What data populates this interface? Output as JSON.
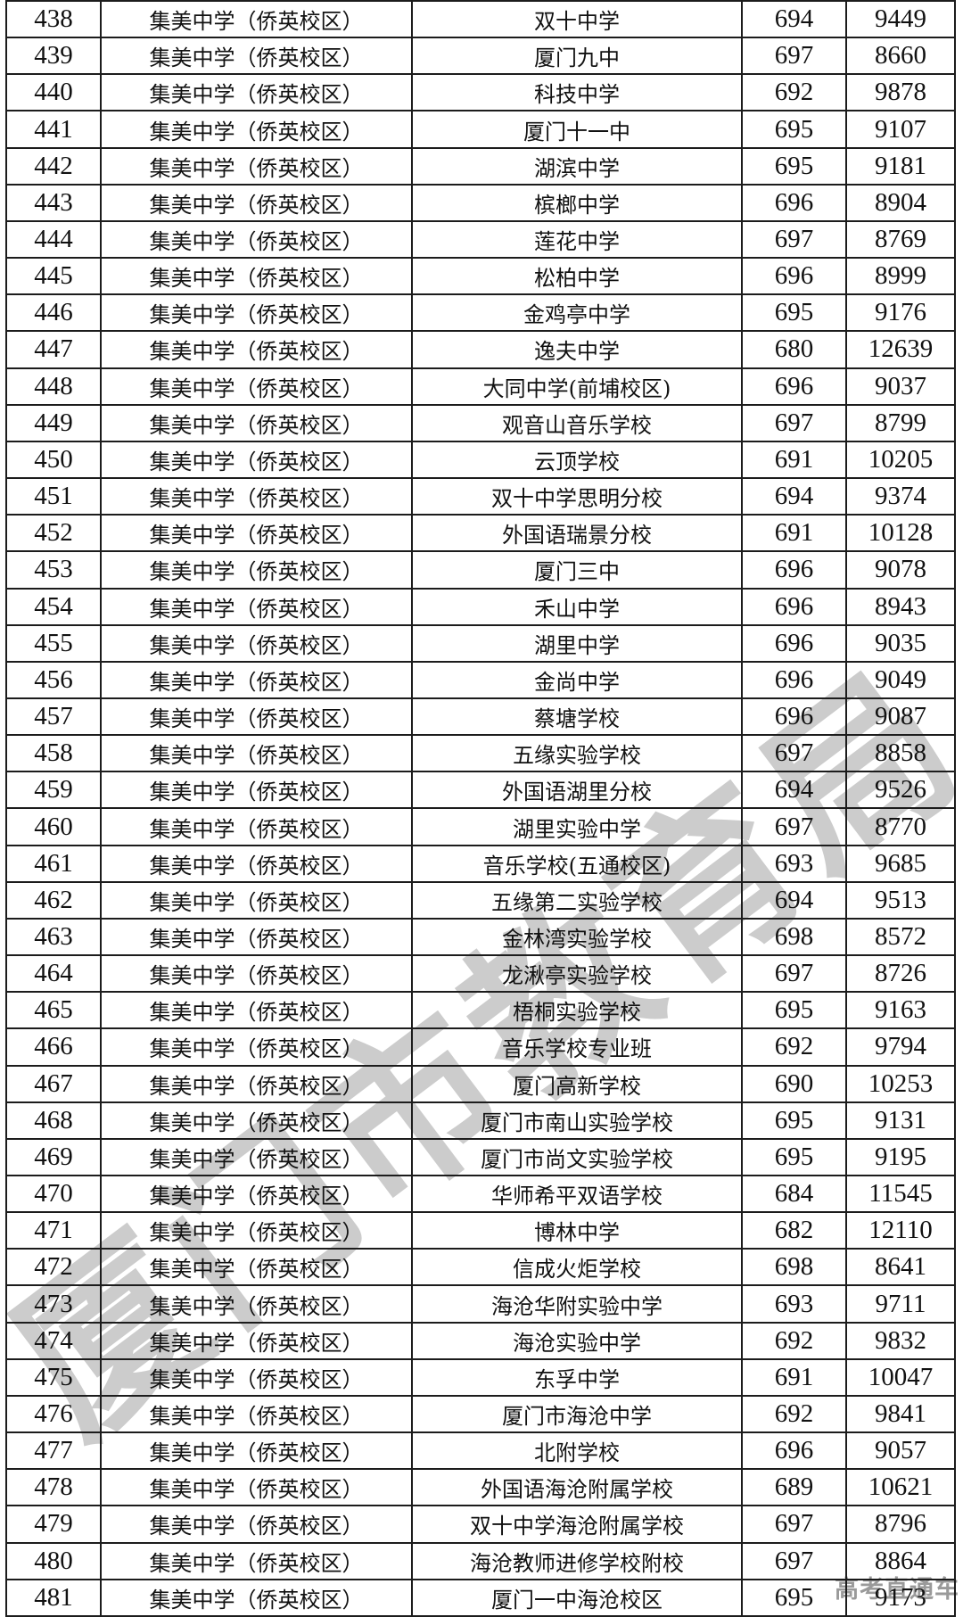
{
  "page": {
    "watermark_diagonal": "厦门市教育局",
    "watermark_corner": "高考直通车"
  },
  "colors": {
    "background": "#ffffff",
    "table_border": "#1c1c1c",
    "cell_text": "#111111",
    "watermark_diagonal": "#cccccc",
    "watermark_corner": "#9a9a9a"
  },
  "table": {
    "rows": [
      [
        "438",
        "集美中学（侨英校区）",
        "双十中学",
        "694",
        "9449"
      ],
      [
        "439",
        "集美中学（侨英校区）",
        "厦门九中",
        "697",
        "8660"
      ],
      [
        "440",
        "集美中学（侨英校区）",
        "科技中学",
        "692",
        "9878"
      ],
      [
        "441",
        "集美中学（侨英校区）",
        "厦门十一中",
        "695",
        "9107"
      ],
      [
        "442",
        "集美中学（侨英校区）",
        "湖滨中学",
        "695",
        "9181"
      ],
      [
        "443",
        "集美中学（侨英校区）",
        "槟榔中学",
        "696",
        "8904"
      ],
      [
        "444",
        "集美中学（侨英校区）",
        "莲花中学",
        "697",
        "8769"
      ],
      [
        "445",
        "集美中学（侨英校区）",
        "松柏中学",
        "696",
        "8999"
      ],
      [
        "446",
        "集美中学（侨英校区）",
        "金鸡亭中学",
        "695",
        "9176"
      ],
      [
        "447",
        "集美中学（侨英校区）",
        "逸夫中学",
        "680",
        "12639"
      ],
      [
        "448",
        "集美中学（侨英校区）",
        "大同中学(前埔校区)",
        "696",
        "9037"
      ],
      [
        "449",
        "集美中学（侨英校区）",
        "观音山音乐学校",
        "697",
        "8799"
      ],
      [
        "450",
        "集美中学（侨英校区）",
        "云顶学校",
        "691",
        "10205"
      ],
      [
        "451",
        "集美中学（侨英校区）",
        "双十中学思明分校",
        "694",
        "9374"
      ],
      [
        "452",
        "集美中学（侨英校区）",
        "外国语瑞景分校",
        "691",
        "10128"
      ],
      [
        "453",
        "集美中学（侨英校区）",
        "厦门三中",
        "696",
        "9078"
      ],
      [
        "454",
        "集美中学（侨英校区）",
        "禾山中学",
        "696",
        "8943"
      ],
      [
        "455",
        "集美中学（侨英校区）",
        "湖里中学",
        "696",
        "9035"
      ],
      [
        "456",
        "集美中学（侨英校区）",
        "金尚中学",
        "696",
        "9049"
      ],
      [
        "457",
        "集美中学（侨英校区）",
        "蔡塘学校",
        "696",
        "9087"
      ],
      [
        "458",
        "集美中学（侨英校区）",
        "五缘实验学校",
        "697",
        "8858"
      ],
      [
        "459",
        "集美中学（侨英校区）",
        "外国语湖里分校",
        "694",
        "9526"
      ],
      [
        "460",
        "集美中学（侨英校区）",
        "湖里实验中学",
        "697",
        "8770"
      ],
      [
        "461",
        "集美中学（侨英校区）",
        "音乐学校(五通校区)",
        "693",
        "9685"
      ],
      [
        "462",
        "集美中学（侨英校区）",
        "五缘第二实验学校",
        "694",
        "9513"
      ],
      [
        "463",
        "集美中学（侨英校区）",
        "金林湾实验学校",
        "698",
        "8572"
      ],
      [
        "464",
        "集美中学（侨英校区）",
        "龙湫亭实验学校",
        "697",
        "8726"
      ],
      [
        "465",
        "集美中学（侨英校区）",
        "梧桐实验学校",
        "695",
        "9163"
      ],
      [
        "466",
        "集美中学（侨英校区）",
        "音乐学校专业班",
        "692",
        "9794"
      ],
      [
        "467",
        "集美中学（侨英校区）",
        "厦门高新学校",
        "690",
        "10253"
      ],
      [
        "468",
        "集美中学（侨英校区）",
        "厦门市南山实验学校",
        "695",
        "9131"
      ],
      [
        "469",
        "集美中学（侨英校区）",
        "厦门市尚文实验学校",
        "695",
        "9195"
      ],
      [
        "470",
        "集美中学（侨英校区）",
        "华师希平双语学校",
        "684",
        "11545"
      ],
      [
        "471",
        "集美中学（侨英校区）",
        "博林中学",
        "682",
        "12110"
      ],
      [
        "472",
        "集美中学（侨英校区）",
        "信成火炬学校",
        "698",
        "8641"
      ],
      [
        "473",
        "集美中学（侨英校区）",
        "海沧华附实验中学",
        "693",
        "9711"
      ],
      [
        "474",
        "集美中学（侨英校区）",
        "海沧实验中学",
        "692",
        "9832"
      ],
      [
        "475",
        "集美中学（侨英校区）",
        "东孚中学",
        "691",
        "10047"
      ],
      [
        "476",
        "集美中学（侨英校区）",
        "厦门市海沧中学",
        "692",
        "9841"
      ],
      [
        "477",
        "集美中学（侨英校区）",
        "北附学校",
        "696",
        "9057"
      ],
      [
        "478",
        "集美中学（侨英校区）",
        "外国语海沧附属学校",
        "689",
        "10621"
      ],
      [
        "479",
        "集美中学（侨英校区）",
        "双十中学海沧附属学校",
        "697",
        "8796"
      ],
      [
        "480",
        "集美中学（侨英校区）",
        "海沧教师进修学校附校",
        "697",
        "8864"
      ],
      [
        "481",
        "集美中学（侨英校区）",
        "厦门一中海沧校区",
        "695",
        "9173"
      ]
    ]
  }
}
